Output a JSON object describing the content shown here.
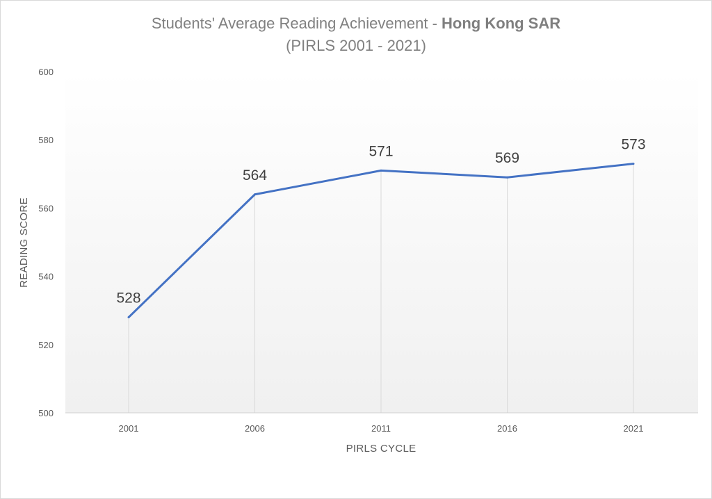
{
  "chart_data": {
    "type": "line",
    "title_prefix": "Students' Average Reading Achievement - ",
    "title_emphasis": "Hong Kong SAR",
    "subtitle": "(PIRLS 2001 - 2021)",
    "xlabel": "PIRLS CYCLE",
    "ylabel": "READING  SCORE",
    "categories": [
      "2001",
      "2006",
      "2011",
      "2016",
      "2021"
    ],
    "series": [
      {
        "values": [
          528,
          564,
          571,
          569,
          573
        ]
      }
    ],
    "data_labels": [
      "528",
      "564",
      "571",
      "569",
      "573"
    ],
    "ylim": [
      500,
      600
    ],
    "yticks": [
      500,
      520,
      540,
      560,
      580,
      600
    ],
    "line_color": "#4472C4",
    "grid": "vertical drop lines at categories",
    "legend": "none"
  }
}
